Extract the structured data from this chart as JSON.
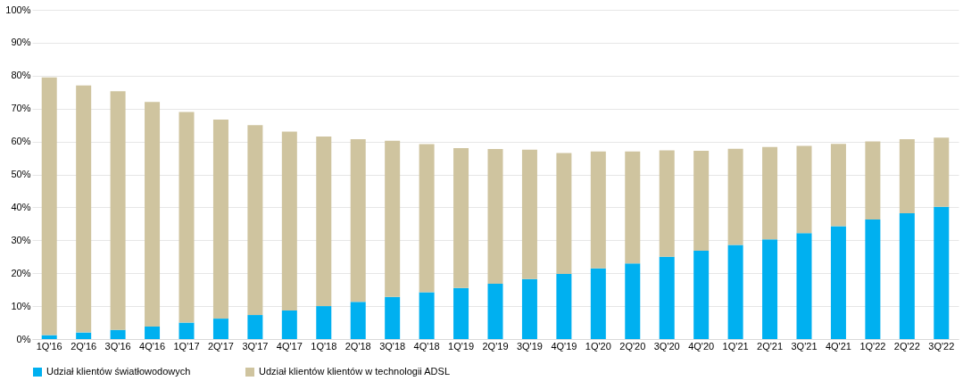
{
  "chart_data": {
    "type": "bar",
    "stacked": true,
    "categories": [
      "1Q'16",
      "2Q'16",
      "3Q'16",
      "4Q'16",
      "1Q'17",
      "2Q'17",
      "3Q'17",
      "4Q'17",
      "1Q'18",
      "2Q'18",
      "3Q'18",
      "4Q'18",
      "1Q'19",
      "2Q'19",
      "3Q'19",
      "4Q'19",
      "1Q'20",
      "2Q'20",
      "3Q'20",
      "4Q'20",
      "1Q'21",
      "2Q'21",
      "3Q'21",
      "4Q'21",
      "1Q'22",
      "2Q'22",
      "3Q'22"
    ],
    "series": [
      {
        "name": "Udział klientów światłowodowych",
        "color": "#00b0f0",
        "values": [
          1.2,
          2,
          2.8,
          3.8,
          5,
          6.2,
          7.3,
          8.7,
          10,
          11.3,
          12.8,
          14.2,
          15.5,
          16.8,
          18.2,
          19.8,
          21.5,
          23,
          25,
          26.8,
          28.6,
          30.3,
          32.2,
          34.3,
          36.3,
          38.2,
          40.2
        ]
      },
      {
        "name": "Udział klientów klientów w technologii ADSL",
        "color": "#cfc49f",
        "values": [
          78.3,
          75.0,
          72.5,
          68.2,
          64.0,
          60.5,
          57.7,
          54.3,
          51.5,
          49.4,
          47.4,
          45.0,
          42.5,
          40.9,
          39.3,
          36.7,
          35.5,
          34.0,
          32.3,
          30.4,
          29.2,
          28.0,
          26.5,
          25.0,
          23.7,
          22.5,
          21.0
        ]
      }
    ],
    "ylim": [
      0,
      100
    ],
    "yticks": [
      {
        "value": 0,
        "label": "0%"
      },
      {
        "value": 10,
        "label": "10%"
      },
      {
        "value": 20,
        "label": "20%"
      },
      {
        "value": 30,
        "label": "30%"
      },
      {
        "value": 40,
        "label": "40%"
      },
      {
        "value": 50,
        "label": "50%"
      },
      {
        "value": 60,
        "label": "60%"
      },
      {
        "value": 70,
        "label": "70%"
      },
      {
        "value": 80,
        "label": "80%"
      },
      {
        "value": 90,
        "label": "90%"
      },
      {
        "value": 100,
        "label": "100%"
      }
    ],
    "grid": "y",
    "legend": "bottom"
  }
}
